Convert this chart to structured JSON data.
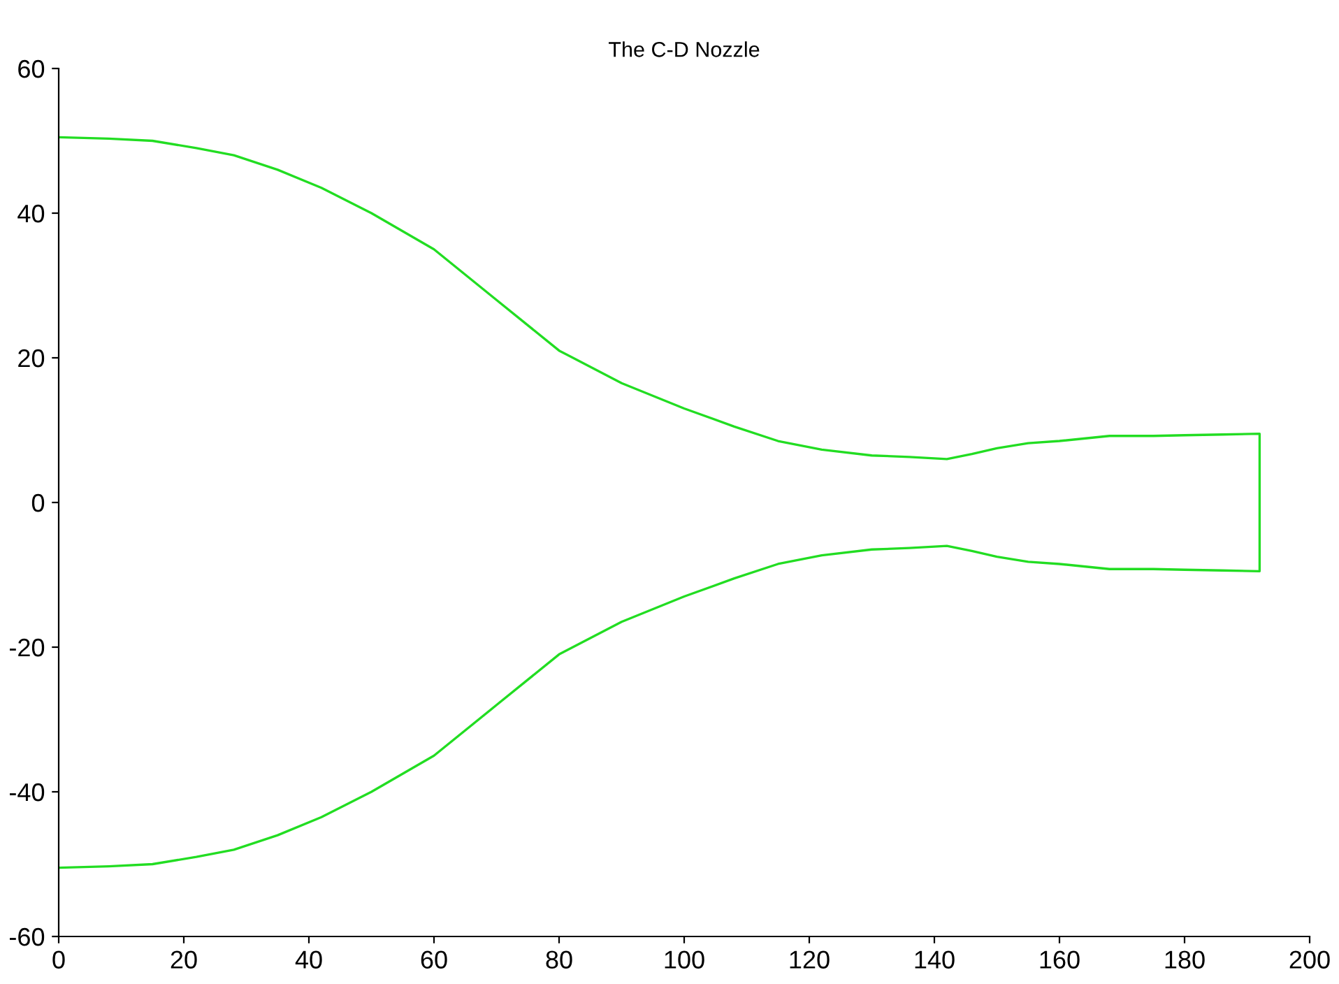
{
  "chart_data": {
    "type": "line",
    "title": "The C-D Nozzle",
    "series": [
      {
        "color": "#22dd22",
        "x": [
          0,
          8,
          15,
          22,
          28,
          35,
          42,
          50,
          60,
          70,
          80,
          90,
          100,
          108,
          115,
          122,
          130,
          136,
          142,
          146,
          150,
          155,
          160,
          168,
          175,
          180,
          186,
          192,
          192,
          186,
          180,
          175,
          168,
          160,
          155,
          150,
          146,
          142,
          136,
          130,
          122,
          115,
          108,
          100,
          90,
          80,
          70,
          60,
          50,
          42,
          35,
          28,
          22,
          15,
          8,
          0
        ],
        "values": [
          50.5,
          50.3,
          50,
          49,
          48,
          46,
          43.5,
          40,
          35,
          28,
          21,
          16.5,
          13,
          10.5,
          8.5,
          7.3,
          6.5,
          6.3,
          6,
          6.7,
          7.5,
          8.2,
          8.5,
          9.2,
          9.2,
          9.3,
          9.4,
          9.5,
          -9.5,
          -9.4,
          -9.3,
          -9.2,
          -9.2,
          -8.5,
          -8.2,
          -7.5,
          -6.7,
          -6,
          -6.3,
          -6.5,
          -7.3,
          -8.5,
          -10.5,
          -13,
          -16.5,
          -21,
          -28,
          -35,
          -40,
          -43.5,
          -46,
          -48,
          -49,
          -50,
          -50.3,
          -50.5
        ]
      }
    ],
    "xlim": [
      0,
      200
    ],
    "xticks": [
      0,
      20,
      40,
      60,
      80,
      100,
      120,
      140,
      160,
      180,
      200
    ],
    "ylim": [
      -60,
      60
    ],
    "yticks": [
      -60,
      -40,
      -20,
      0,
      20,
      40,
      60
    ],
    "grid": false,
    "legend": false,
    "marker": "none",
    "line_style": "solid"
  }
}
